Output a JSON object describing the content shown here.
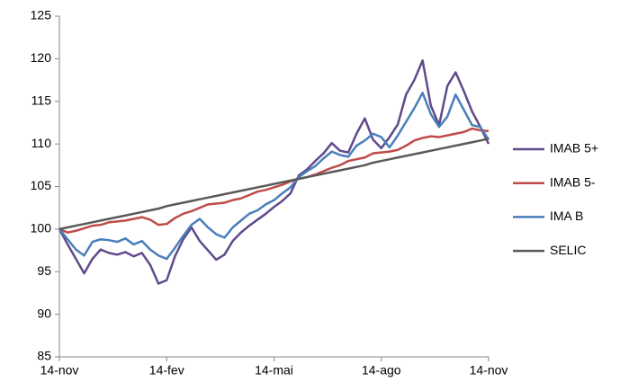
{
  "chart_data": {
    "type": "line",
    "categories": [
      "14-nov",
      null,
      null,
      null,
      null,
      null,
      null,
      null,
      null,
      null,
      null,
      null,
      null,
      "14-fev",
      null,
      null,
      null,
      null,
      null,
      null,
      null,
      null,
      null,
      null,
      null,
      null,
      "14-mai",
      null,
      null,
      null,
      null,
      null,
      null,
      null,
      null,
      null,
      null,
      null,
      null,
      "14-ago",
      null,
      null,
      null,
      null,
      null,
      null,
      null,
      null,
      null,
      null,
      null,
      null,
      "14-nov"
    ],
    "series": [
      {
        "name": "IMAB 5+",
        "color": "#604a8b",
        "values": [
          100,
          98.2,
          96.5,
          94.8,
          96.5,
          97.6,
          97.2,
          97.0,
          97.3,
          96.8,
          97.2,
          95.8,
          93.6,
          94.0,
          96.8,
          98.8,
          100.2,
          98.6,
          97.5,
          96.4,
          97.0,
          98.6,
          99.6,
          100.4,
          101.1,
          101.8,
          102.6,
          103.3,
          104.2,
          106.3,
          107.0,
          108.0,
          108.9,
          110.1,
          109.2,
          109.0,
          111.2,
          113.0,
          110.5,
          109.5,
          110.8,
          112.3,
          115.8,
          117.5,
          119.8,
          114.5,
          112.2,
          116.8,
          118.4,
          116.2,
          113.8,
          112.0,
          110.0
        ]
      },
      {
        "name": "IMAB 5-",
        "color": "#be4b48",
        "values": [
          100,
          99.6,
          99.8,
          100.1,
          100.4,
          100.5,
          100.8,
          100.9,
          101.0,
          101.2,
          101.4,
          101.1,
          100.5,
          100.6,
          101.3,
          101.8,
          102.1,
          102.5,
          102.9,
          103.0,
          103.1,
          103.4,
          103.6,
          104.0,
          104.4,
          104.6,
          104.9,
          105.2,
          105.6,
          105.9,
          106.1,
          106.4,
          106.8,
          107.2,
          107.5,
          108.0,
          108.2,
          108.4,
          108.9,
          109.0,
          109.1,
          109.3,
          109.8,
          110.4,
          110.7,
          110.9,
          110.8,
          111.0,
          111.2,
          111.4,
          111.8,
          111.6,
          111.5
        ]
      },
      {
        "name": "IMA B",
        "color": "#4a7ebb",
        "values": [
          100,
          98.8,
          97.6,
          96.9,
          98.5,
          98.8,
          98.7,
          98.5,
          98.9,
          98.2,
          98.6,
          97.6,
          96.9,
          96.5,
          97.8,
          99.2,
          100.5,
          101.2,
          100.2,
          99.4,
          99.0,
          100.2,
          101.0,
          101.8,
          102.2,
          102.9,
          103.4,
          104.2,
          104.9,
          106.1,
          106.8,
          107.4,
          108.3,
          109.1,
          108.7,
          108.5,
          109.8,
          110.4,
          111.2,
          110.8,
          109.6,
          111.0,
          112.6,
          114.2,
          116.0,
          113.5,
          112.0,
          113.2,
          115.8,
          114.0,
          112.2,
          112.0,
          110.5
        ]
      },
      {
        "name": "SELIC",
        "color": "#595959",
        "values": [
          100.0,
          100.2,
          100.4,
          100.6,
          100.8,
          101.0,
          101.2,
          101.4,
          101.6,
          101.8,
          102.0,
          102.2,
          102.4,
          102.7,
          102.9,
          103.1,
          103.3,
          103.5,
          103.7,
          103.9,
          104.1,
          104.3,
          104.5,
          104.7,
          104.9,
          105.1,
          105.3,
          105.5,
          105.7,
          105.9,
          106.1,
          106.3,
          106.5,
          106.7,
          106.9,
          107.1,
          107.3,
          107.5,
          107.8,
          108.0,
          108.2,
          108.4,
          108.6,
          108.8,
          109.0,
          109.2,
          109.4,
          109.6,
          109.8,
          110.0,
          110.2,
          110.4,
          110.6
        ]
      }
    ],
    "ylim": [
      85,
      125
    ],
    "yticks": [
      85,
      90,
      95,
      100,
      105,
      110,
      115,
      120,
      125
    ],
    "grid": false,
    "legend": "right"
  }
}
